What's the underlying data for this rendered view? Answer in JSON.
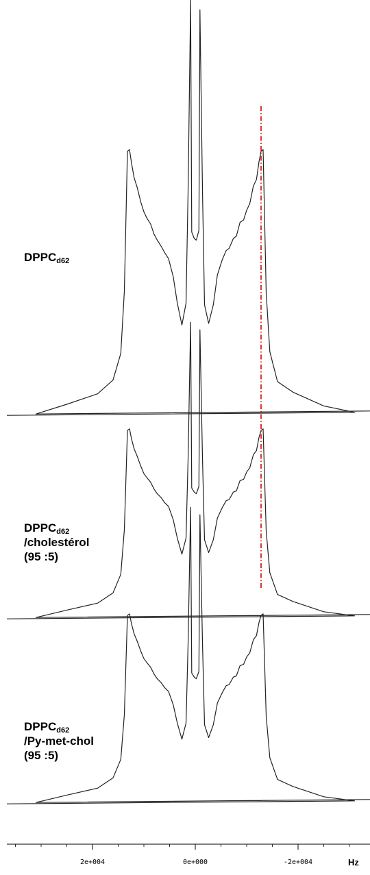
{
  "chart_data": {
    "type": "line",
    "x_unit": "Hz",
    "x_ticks": [
      {
        "value": 20000,
        "label": "2e+004"
      },
      {
        "value": 0,
        "label": "0e+000"
      },
      {
        "value": -20000,
        "label": "-2e+004"
      }
    ],
    "xlim": [
      38000,
      -34000
    ],
    "x_reversed": true,
    "reference_line": {
      "x": -12800,
      "color": "#dd0000",
      "style": "dash-dot"
    },
    "series": [
      {
        "label": {
          "base": "DPPC",
          "sub": "d62",
          "lines": []
        },
        "x": [
          -31000,
          -25000,
          -19000,
          -16000,
          -14500,
          -13800,
          -13200,
          -12800,
          -12400,
          -11900,
          -11300,
          -10600,
          -10000,
          -9400,
          -8700,
          -8000,
          -7400,
          -6600,
          -6000,
          -5200,
          -4300,
          -3500,
          -2600,
          -1800,
          -1400,
          -900,
          -700,
          -200,
          200,
          700,
          900,
          1400,
          1800,
          2600,
          3500,
          4300,
          5200,
          6000,
          6600,
          7400,
          8000,
          8700,
          9400,
          10000,
          10600,
          11300,
          11900,
          12400,
          12800,
          13200,
          13800,
          14500,
          16000,
          19000,
          25000,
          31000
        ],
        "y": [
          0.0,
          0.02,
          0.05,
          0.08,
          0.15,
          0.3,
          0.65,
          0.65,
          0.62,
          0.58,
          0.56,
          0.52,
          0.5,
          0.48,
          0.47,
          0.44,
          0.43,
          0.41,
          0.4,
          0.38,
          0.34,
          0.27,
          0.22,
          0.27,
          0.55,
          1.0,
          0.45,
          0.43,
          0.43,
          0.45,
          1.02,
          0.55,
          0.27,
          0.22,
          0.27,
          0.34,
          0.38,
          0.4,
          0.41,
          0.43,
          0.44,
          0.47,
          0.48,
          0.5,
          0.52,
          0.56,
          0.58,
          0.62,
          0.65,
          0.65,
          0.3,
          0.15,
          0.08,
          0.05,
          0.02,
          0.0
        ]
      },
      {
        "label": {
          "base": "DPPC",
          "sub": "d62",
          "lines": [
            "/cholestérol",
            "(95 :5)"
          ]
        },
        "x": [
          -31000,
          -25000,
          -19000,
          -16000,
          -14500,
          -13800,
          -13200,
          -12800,
          -12400,
          -11900,
          -11300,
          -10600,
          -10000,
          -9400,
          -8700,
          -8000,
          -7400,
          -6600,
          -6000,
          -5200,
          -4300,
          -3500,
          -2600,
          -1800,
          -1400,
          -900,
          -700,
          -200,
          200,
          700,
          900,
          1400,
          1800,
          2600,
          3500,
          4300,
          5200,
          6000,
          6600,
          7400,
          8000,
          8700,
          9400,
          10000,
          10600,
          11300,
          11900,
          12400,
          12800,
          13200,
          13800,
          14500,
          16000,
          19000,
          25000,
          31000
        ],
        "y": [
          0.0,
          0.02,
          0.05,
          0.08,
          0.15,
          0.3,
          0.65,
          0.65,
          0.62,
          0.58,
          0.56,
          0.52,
          0.5,
          0.48,
          0.47,
          0.44,
          0.43,
          0.41,
          0.4,
          0.38,
          0.34,
          0.27,
          0.22,
          0.27,
          0.55,
          1.0,
          0.45,
          0.43,
          0.43,
          0.45,
          1.02,
          0.55,
          0.27,
          0.22,
          0.27,
          0.34,
          0.38,
          0.4,
          0.41,
          0.43,
          0.44,
          0.47,
          0.48,
          0.5,
          0.52,
          0.56,
          0.58,
          0.62,
          0.65,
          0.65,
          0.3,
          0.15,
          0.08,
          0.05,
          0.02,
          0.0
        ]
      },
      {
        "label": {
          "base": "DPPC",
          "sub": "d62",
          "lines": [
            "/Py-met-chol",
            "(95 :5)"
          ]
        },
        "x": [
          -31000,
          -25000,
          -19000,
          -16000,
          -14500,
          -13800,
          -13200,
          -12800,
          -12400,
          -11900,
          -11300,
          -10600,
          -10000,
          -9400,
          -8700,
          -8000,
          -7400,
          -6600,
          -6000,
          -5200,
          -4300,
          -3500,
          -2600,
          -1800,
          -1400,
          -900,
          -700,
          -200,
          200,
          700,
          900,
          1400,
          1800,
          2600,
          3500,
          4300,
          5200,
          6000,
          6600,
          7400,
          8000,
          8700,
          9400,
          10000,
          10600,
          11300,
          11900,
          12400,
          12800,
          13200,
          13800,
          14500,
          16000,
          19000,
          25000,
          31000
        ],
        "y": [
          0.0,
          0.02,
          0.05,
          0.08,
          0.15,
          0.3,
          0.65,
          0.65,
          0.62,
          0.58,
          0.56,
          0.52,
          0.5,
          0.48,
          0.47,
          0.44,
          0.43,
          0.41,
          0.4,
          0.38,
          0.34,
          0.27,
          0.22,
          0.27,
          0.55,
          1.0,
          0.45,
          0.43,
          0.43,
          0.45,
          1.02,
          0.55,
          0.27,
          0.22,
          0.27,
          0.34,
          0.38,
          0.4,
          0.41,
          0.43,
          0.44,
          0.47,
          0.48,
          0.5,
          0.52,
          0.56,
          0.58,
          0.62,
          0.65,
          0.65,
          0.3,
          0.15,
          0.08,
          0.05,
          0.02,
          0.0
        ]
      }
    ]
  }
}
